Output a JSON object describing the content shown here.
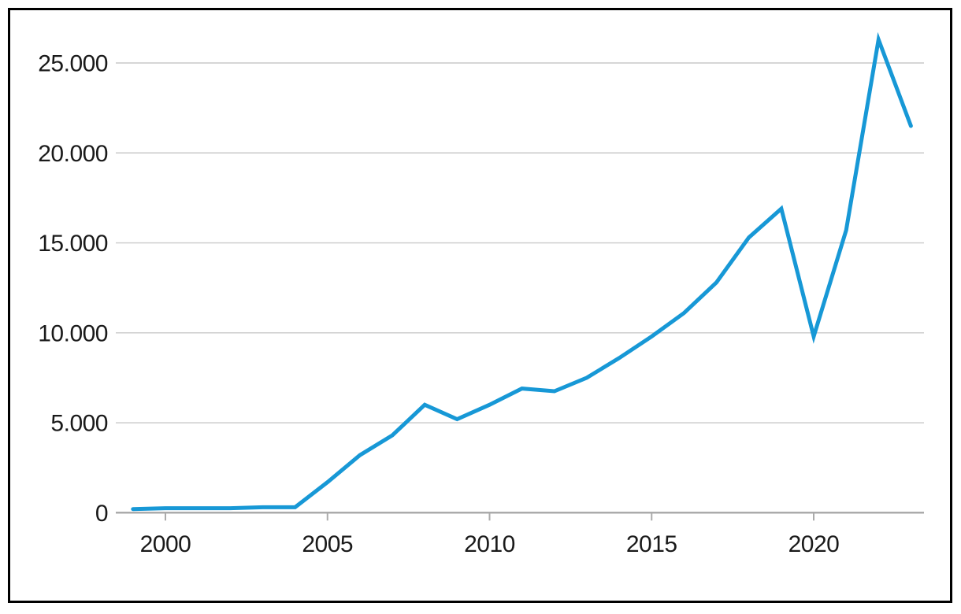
{
  "chart_data": {
    "type": "line",
    "title": "",
    "xlabel": "",
    "ylabel": "",
    "x": [
      1999,
      2000,
      2001,
      2002,
      2003,
      2004,
      2005,
      2006,
      2007,
      2008,
      2009,
      2010,
      2011,
      2012,
      2013,
      2014,
      2015,
      2016,
      2017,
      2018,
      2019,
      2020,
      2021,
      2022,
      2023
    ],
    "series": [
      {
        "name": "main-series",
        "values": [
          200,
          250,
          250,
          250,
          300,
          300,
          1700,
          3200,
          4300,
          6000,
          5200,
          6000,
          6900,
          6750,
          7500,
          8600,
          9800,
          11100,
          12800,
          15300,
          16900,
          9800,
          15700,
          26300,
          21500
        ]
      }
    ],
    "xlim": [
      1998.5,
      2023.4
    ],
    "ylim": [
      0,
      27000
    ],
    "grid": "horizontal",
    "legend": "none",
    "y_ticks": [
      {
        "value": 0,
        "label": "0"
      },
      {
        "value": 5000,
        "label": "5.000"
      },
      {
        "value": 10000,
        "label": "10.000"
      },
      {
        "value": 15000,
        "label": "15.000"
      },
      {
        "value": 20000,
        "label": "20.000"
      },
      {
        "value": 25000,
        "label": "25.000"
      }
    ],
    "x_ticks": [
      {
        "value": 2000,
        "label": "2000"
      },
      {
        "value": 2005,
        "label": "2005"
      },
      {
        "value": 2010,
        "label": "2010"
      },
      {
        "value": 2015,
        "label": "2015"
      },
      {
        "value": 2020,
        "label": "2020"
      }
    ],
    "colors": {
      "line": "#1798d6",
      "gridline": "#c9c9c9",
      "axis": "#ababab",
      "text": "#1a1a1a",
      "background": "#ffffff",
      "frame_border": "#000000"
    }
  }
}
